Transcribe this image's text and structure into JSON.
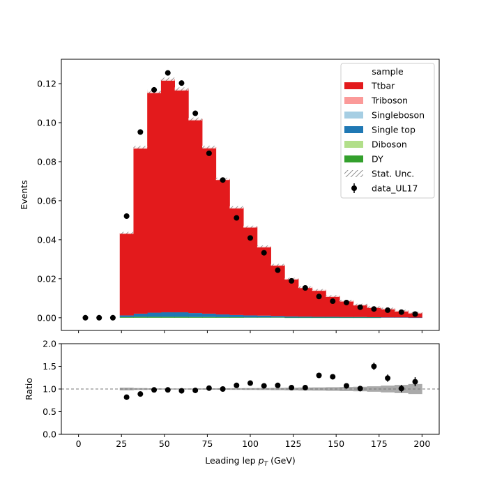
{
  "chart_data": [
    {
      "type": "bar",
      "stacked": true,
      "ylabel": "Events",
      "xlim": [
        -10,
        210
      ],
      "ylim": [
        -0.0065,
        0.1325
      ],
      "yticks": [
        "0.00",
        "0.02",
        "0.04",
        "0.06",
        "0.08",
        "0.10",
        "0.12"
      ],
      "ytick_values": [
        0.0,
        0.02,
        0.04,
        0.06,
        0.08,
        0.1,
        0.12
      ],
      "xticks": [
        0,
        25,
        50,
        75,
        100,
        125,
        150,
        175,
        200
      ],
      "bin_edges": [
        24,
        32,
        40,
        48,
        56,
        64,
        72,
        80,
        88,
        96,
        104,
        112,
        120,
        128,
        136,
        144,
        152,
        160,
        168,
        176,
        184,
        192,
        200
      ],
      "series": [
        {
          "name": "Ttbar",
          "color": "#e31a1c",
          "values": [
            0.0423,
            0.0853,
            0.1134,
            0.1195,
            0.1145,
            0.0995,
            0.0854,
            0.0695,
            0.0552,
            0.0455,
            0.0355,
            0.0263,
            0.0194,
            0.0152,
            0.0139,
            0.0108,
            0.0085,
            0.0065,
            0.0053,
            0.0047,
            0.0036,
            0.0027
          ]
        },
        {
          "name": "Triboson",
          "color": "#fb9a99",
          "values": [
            0,
            0,
            0,
            0,
            0,
            0,
            0,
            0,
            0,
            0,
            0,
            0,
            0,
            0,
            0,
            0,
            0,
            0,
            0,
            0,
            0,
            0
          ]
        },
        {
          "name": "Singleboson",
          "color": "#a6cee3",
          "values": [
            0,
            0,
            0,
            0,
            0,
            0,
            0,
            0,
            0,
            0,
            0,
            0,
            0,
            0,
            0,
            0,
            0,
            0,
            0,
            0,
            0,
            0
          ]
        },
        {
          "name": "Single top",
          "color": "#1f78b4",
          "values": [
            0.0009,
            0.0016,
            0.0021,
            0.0023,
            0.0023,
            0.002,
            0.0017,
            0.0014,
            0.0011,
            0.001,
            0.0009,
            0.0007,
            0.0006,
            0.0005,
            0.0004,
            0.0004,
            0.0003,
            0.0003,
            0.0002,
            0.0002,
            0.0002,
            0.0001
          ]
        },
        {
          "name": "Diboson",
          "color": "#b2df8a",
          "values": [
            0,
            0,
            0,
            0,
            0,
            0,
            0,
            0,
            0,
            0,
            0,
            0,
            0,
            0,
            0,
            0,
            0,
            0,
            0,
            0,
            0,
            0
          ]
        },
        {
          "name": "DY",
          "color": "#33a02c",
          "values": [
            0.0003,
            0.0005,
            0.0005,
            0.0005,
            0.0005,
            0.0004,
            0.0004,
            0.0003,
            0.0003,
            0.0002,
            0.0002,
            0.0002,
            0.0001,
            0.0001,
            0.0001,
            0.0001,
            0.0001,
            0.0001,
            0.0001,
            0.0,
            0.0,
            0.0
          ]
        }
      ],
      "stat_unc": [
        0.0005,
        0.0007,
        0.0008,
        0.0008,
        0.0008,
        0.0007,
        0.0007,
        0.0006,
        0.0006,
        0.0005,
        0.0005,
        0.0004,
        0.0004,
        0.0003,
        0.0003,
        0.0003,
        0.0003,
        0.0003,
        0.0003,
        0.0003,
        0.0003,
        0.0003
      ],
      "data": {
        "name": "data_UL17",
        "x": [
          4,
          12,
          20,
          28,
          36,
          44,
          52,
          60,
          68,
          76,
          84,
          92,
          100,
          108,
          116,
          124,
          132,
          140,
          148,
          156,
          164,
          172,
          180,
          188,
          196
        ],
        "y": [
          0.0,
          0.0,
          0.0,
          0.0521,
          0.0952,
          0.1168,
          0.1255,
          0.1203,
          0.1048,
          0.0843,
          0.0706,
          0.0512,
          0.0409,
          0.0333,
          0.0244,
          0.0189,
          0.0153,
          0.0109,
          0.0085,
          0.0078,
          0.0054,
          0.0045,
          0.0039,
          0.0029,
          0.0019
        ],
        "yerr": [
          0,
          0,
          0,
          0.0006,
          0.0008,
          0.0008,
          0.0009,
          0.0009,
          0.0008,
          0.0007,
          0.0007,
          0.0006,
          0.0005,
          0.0005,
          0.0004,
          0.0004,
          0.0003,
          0.0003,
          0.0003,
          0.0003,
          0.0002,
          0.0002,
          0.0002,
          0.0002,
          0.0002
        ]
      },
      "legend": {
        "title": "sample",
        "placement": "top-right",
        "entries": [
          "Ttbar",
          "Triboson",
          "Singleboson",
          "Single top",
          "Diboson",
          "DY",
          "Stat. Unc.",
          "data_UL17"
        ]
      }
    },
    {
      "type": "scatter",
      "ylabel": "Ratio",
      "xlabel_main": "Leading lep ",
      "xlabel_sym": "p",
      "xlabel_sub": "T",
      "xlabel_unit": " (GeV)",
      "xlim": [
        -10,
        210
      ],
      "ylim": [
        0,
        2
      ],
      "yticks": [
        "0.0",
        "0.5",
        "1.0",
        "1.5",
        "2.0"
      ],
      "ytick_values": [
        0.0,
        0.5,
        1.0,
        1.5,
        2.0
      ],
      "xticks": [
        "0",
        "25",
        "50",
        "75",
        "100",
        "125",
        "150",
        "175",
        "200"
      ],
      "xtick_values": [
        0,
        25,
        50,
        75,
        100,
        125,
        150,
        175,
        200
      ],
      "reference_line": 1.0,
      "band_rel": [
        0.03,
        0.02,
        0.015,
        0.012,
        0.012,
        0.013,
        0.014,
        0.016,
        0.018,
        0.02,
        0.022,
        0.026,
        0.03,
        0.034,
        0.036,
        0.04,
        0.045,
        0.05,
        0.06,
        0.075,
        0.09,
        0.11
      ],
      "x": [
        28,
        36,
        44,
        52,
        60,
        68,
        76,
        84,
        92,
        100,
        108,
        116,
        124,
        132,
        140,
        148,
        156,
        164,
        172,
        180,
        188,
        196
      ],
      "y": [
        0.82,
        0.89,
        0.98,
        0.98,
        0.96,
        0.97,
        1.02,
        1.0,
        1.08,
        1.13,
        1.07,
        1.08,
        1.03,
        1.03,
        1.3,
        1.27,
        1.07,
        1.01,
        1.5,
        1.24,
        1.01,
        1.16
      ],
      "yerr": [
        0.02,
        0.02,
        0.02,
        0.02,
        0.02,
        0.02,
        0.02,
        0.02,
        0.02,
        0.02,
        0.03,
        0.03,
        0.03,
        0.03,
        0.04,
        0.05,
        0.05,
        0.06,
        0.08,
        0.08,
        0.08,
        0.1
      ]
    }
  ]
}
